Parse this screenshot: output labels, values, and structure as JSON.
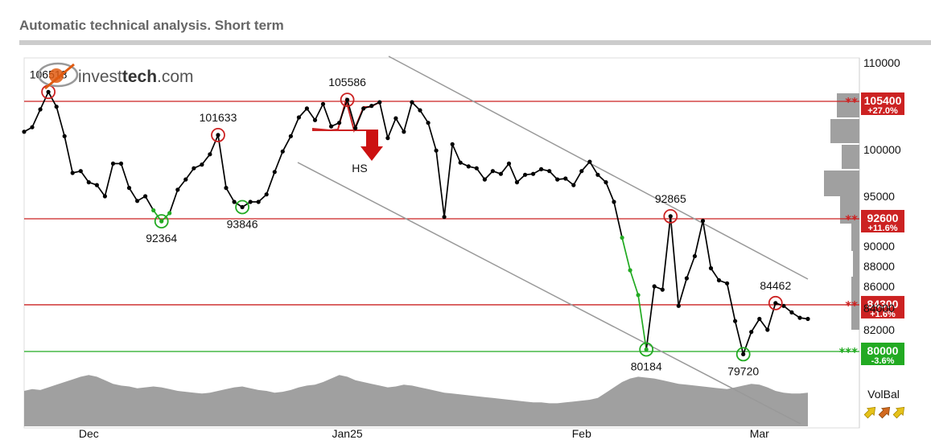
{
  "header": {
    "title": "Automatic technical analysis. Short term"
  },
  "logo": {
    "text_plain": "invest",
    "text_bold": "tech",
    "text_suffix": ".com"
  },
  "colors": {
    "price": "#000000",
    "resistance": "#cc2222",
    "support": "#22aa22",
    "channel": "#999999",
    "volume": "#a0a0a0",
    "up_arrow": "#e6c21a",
    "mid_arrow": "#d2691e"
  },
  "chart_data": {
    "type": "line",
    "x_labels": [
      "Dec",
      "Jan25",
      "Feb",
      "Mar"
    ],
    "y_ticks": [
      82000,
      84000,
      86000,
      88000,
      90000,
      95000,
      100000,
      110000
    ],
    "ylim": [
      79000,
      110000
    ],
    "series": [
      {
        "values": [
          102000,
          102500,
          104500,
          106518,
          104800,
          101500,
          97500,
          97700,
          96500,
          96200,
          95000,
          98500,
          98500,
          95900,
          94500,
          95000,
          93500,
          92364,
          93200,
          95700,
          96800,
          98000,
          98400,
          99500,
          101633,
          95900,
          94400,
          93846,
          94400,
          94400,
          95200,
          97600,
          99800,
          101500,
          103600,
          104600,
          103300,
          105100,
          102600,
          103000,
          105586,
          102400,
          104600,
          104900,
          105300,
          101300,
          103500,
          102000,
          105300,
          104400,
          103000,
          99900,
          92800,
          100600,
          98600,
          98200,
          98000,
          96800,
          97700,
          97400,
          98500,
          96500,
          97300,
          97400,
          97900,
          97700,
          96800,
          96900,
          96200,
          97700,
          98700,
          97300,
          96500,
          94400,
          90800,
          87600,
          85200,
          80184,
          86000,
          85700,
          92865,
          84200,
          86800,
          89000,
          92400,
          87800,
          86600,
          86300,
          82800,
          79720,
          81800,
          83000,
          82000,
          84462,
          84200,
          83600,
          83100,
          83000
        ]
      }
    ],
    "point_labels": [
      {
        "text": "106518",
        "value": 106518,
        "kind": "high"
      },
      {
        "text": "101633",
        "value": 101633,
        "kind": "high"
      },
      {
        "text": "105586",
        "value": 105586,
        "kind": "high"
      },
      {
        "text": "92865",
        "value": 92865,
        "kind": "high"
      },
      {
        "text": "84462",
        "value": 84462,
        "kind": "high"
      },
      {
        "text": "92364",
        "value": 92364,
        "kind": "low"
      },
      {
        "text": "93846",
        "value": 93846,
        "kind": "low"
      },
      {
        "text": "80184",
        "value": 80184,
        "kind": "low"
      },
      {
        "text": "79720",
        "value": 79720,
        "kind": "low"
      }
    ],
    "levels": [
      {
        "value": "105400",
        "pct": "+27.0%",
        "stars": "**",
        "kind": "resistance"
      },
      {
        "value": "92600",
        "pct": "+11.6%",
        "stars": "**",
        "kind": "resistance"
      },
      {
        "value": "84300",
        "pct": "+1.6%",
        "stars": "**",
        "kind": "resistance"
      },
      {
        "value": "80000",
        "pct": "-3.6%",
        "stars": "***",
        "kind": "support"
      }
    ],
    "pattern": {
      "label": "HS"
    },
    "volume": [
      40,
      42,
      41,
      44,
      47,
      50,
      53,
      56,
      58,
      56,
      52,
      48,
      46,
      45,
      43,
      44,
      45,
      44,
      42,
      40,
      39,
      38,
      37,
      38,
      40,
      42,
      44,
      45,
      43,
      41,
      40,
      38,
      39,
      41,
      44,
      46,
      47,
      50,
      54,
      58,
      56,
      52,
      50,
      48,
      46,
      44,
      45,
      47,
      46,
      44,
      42,
      40,
      38,
      37,
      36,
      35,
      34,
      33,
      32,
      31,
      30,
      29,
      28,
      27,
      27,
      26,
      26,
      27,
      28,
      29,
      30,
      32,
      38,
      44,
      50,
      54,
      56,
      55,
      54,
      52,
      50,
      48,
      47,
      46,
      45,
      44,
      43,
      42,
      44,
      46,
      48,
      47,
      44,
      40,
      38,
      37,
      37,
      38
    ],
    "volbal": {
      "label": "VolBal"
    }
  }
}
